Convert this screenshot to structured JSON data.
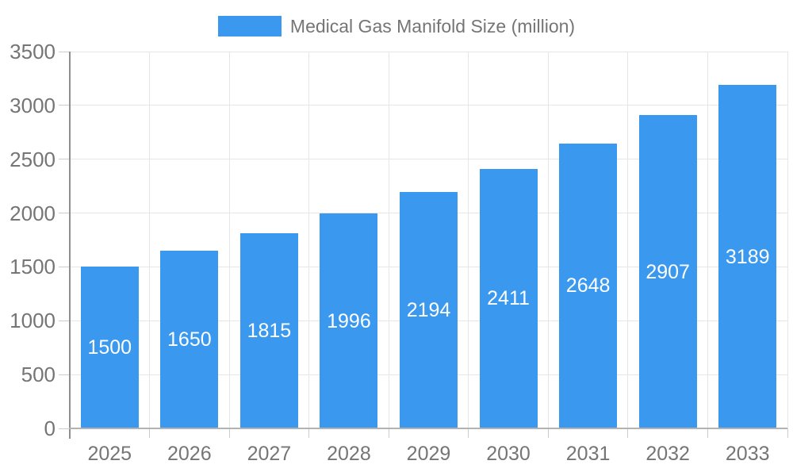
{
  "chart_data": {
    "type": "bar",
    "title": "Medical Gas Manifold Size (million)",
    "categories": [
      "2025",
      "2026",
      "2027",
      "2028",
      "2029",
      "2030",
      "2031",
      "2032",
      "2033"
    ],
    "values": [
      1500,
      1650,
      1815,
      1996,
      2194,
      2411,
      2648,
      2907,
      3189
    ],
    "xlabel": "",
    "ylabel": "",
    "ylim": [
      0,
      3500
    ],
    "yticks": [
      0,
      500,
      1000,
      1500,
      2000,
      2500,
      3000,
      3500
    ],
    "grid": true,
    "legend_position": "top-center",
    "colors": {
      "bar": "#3a99ef",
      "bar_label": "#ffffff",
      "axis_text": "#757575",
      "gridline": "#e6e6e6",
      "tick": "#cccccc",
      "y_axis_line": "#8f8f8f",
      "baseline": "#b3b3b3",
      "background": "#ffffff"
    }
  }
}
